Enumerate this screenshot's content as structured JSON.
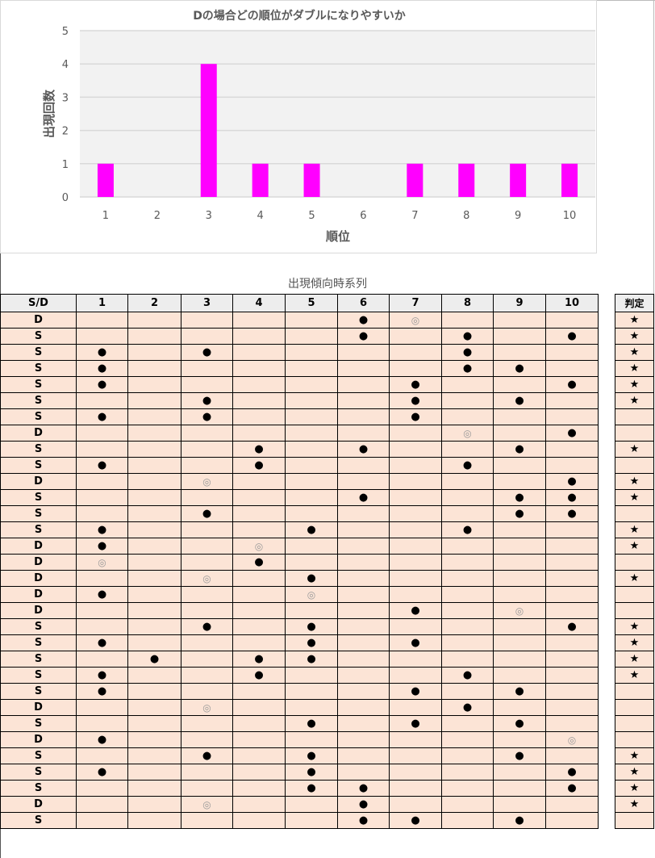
{
  "chart_data": {
    "type": "bar",
    "title": "Dの場合どの順位がダブルになりやすいか",
    "xlabel": "順位",
    "ylabel": "出現回数",
    "categories": [
      "1",
      "2",
      "3",
      "4",
      "5",
      "6",
      "7",
      "8",
      "9",
      "10"
    ],
    "values": [
      1,
      0,
      4,
      1,
      1,
      0,
      1,
      1,
      1,
      1
    ],
    "ylim": [
      0,
      5
    ],
    "yticks": [
      "0",
      "1",
      "2",
      "3",
      "4",
      "5"
    ],
    "grid": true,
    "bar_color": "#ff00ff"
  },
  "table": {
    "title": "出現傾向時系列",
    "headers": [
      "S/D",
      "1",
      "2",
      "3",
      "4",
      "5",
      "6",
      "7",
      "8",
      "9",
      "10"
    ],
    "judge_header": "判定",
    "rows": [
      {
        "sd": "D",
        "cells": [
          "",
          "",
          "",
          "",
          "",
          "●",
          "◎",
          "",
          "",
          ""
        ],
        "judge": "★"
      },
      {
        "sd": "S",
        "cells": [
          "",
          "",
          "",
          "",
          "",
          "●",
          "",
          "●",
          "",
          "●"
        ],
        "judge": "★"
      },
      {
        "sd": "S",
        "cells": [
          "●",
          "",
          "●",
          "",
          "",
          "",
          "",
          "●",
          "",
          ""
        ],
        "judge": "★"
      },
      {
        "sd": "S",
        "cells": [
          "●",
          "",
          "",
          "",
          "",
          "",
          "",
          "●",
          "●",
          ""
        ],
        "judge": "★"
      },
      {
        "sd": "S",
        "cells": [
          "●",
          "",
          "",
          "",
          "",
          "",
          "●",
          "",
          "",
          "●"
        ],
        "judge": "★"
      },
      {
        "sd": "S",
        "cells": [
          "",
          "",
          "●",
          "",
          "",
          "",
          "●",
          "",
          "●",
          ""
        ],
        "judge": "★"
      },
      {
        "sd": "S",
        "cells": [
          "●",
          "",
          "●",
          "",
          "",
          "",
          "●",
          "",
          "",
          ""
        ],
        "judge": ""
      },
      {
        "sd": "D",
        "cells": [
          "",
          "",
          "",
          "",
          "",
          "",
          "",
          "◎",
          "",
          "●"
        ],
        "judge": ""
      },
      {
        "sd": "S",
        "cells": [
          "",
          "",
          "",
          "●",
          "",
          "●",
          "",
          "",
          "●",
          ""
        ],
        "judge": "★"
      },
      {
        "sd": "S",
        "cells": [
          "●",
          "",
          "",
          "●",
          "",
          "",
          "",
          "●",
          "",
          ""
        ],
        "judge": ""
      },
      {
        "sd": "D",
        "cells": [
          "",
          "",
          "◎",
          "",
          "",
          "",
          "",
          "",
          "",
          "●"
        ],
        "judge": "★"
      },
      {
        "sd": "S",
        "cells": [
          "",
          "",
          "",
          "",
          "",
          "●",
          "",
          "",
          "●",
          "●"
        ],
        "judge": "★"
      },
      {
        "sd": "S",
        "cells": [
          "",
          "",
          "●",
          "",
          "",
          "",
          "",
          "",
          "●",
          "●"
        ],
        "judge": ""
      },
      {
        "sd": "S",
        "cells": [
          "●",
          "",
          "",
          "",
          "●",
          "",
          "",
          "●",
          "",
          ""
        ],
        "judge": "★"
      },
      {
        "sd": "D",
        "cells": [
          "●",
          "",
          "",
          "◎",
          "",
          "",
          "",
          "",
          "",
          ""
        ],
        "judge": "★"
      },
      {
        "sd": "D",
        "cells": [
          "◎",
          "",
          "",
          "●",
          "",
          "",
          "",
          "",
          "",
          ""
        ],
        "judge": ""
      },
      {
        "sd": "D",
        "cells": [
          "",
          "",
          "◎",
          "",
          "●",
          "",
          "",
          "",
          "",
          ""
        ],
        "judge": "★"
      },
      {
        "sd": "D",
        "cells": [
          "●",
          "",
          "",
          "",
          "◎",
          "",
          "",
          "",
          "",
          ""
        ],
        "judge": ""
      },
      {
        "sd": "D",
        "cells": [
          "",
          "",
          "",
          "",
          "",
          "",
          "●",
          "",
          "◎",
          ""
        ],
        "judge": ""
      },
      {
        "sd": "S",
        "cells": [
          "",
          "",
          "●",
          "",
          "●",
          "",
          "",
          "",
          "",
          "●"
        ],
        "judge": "★"
      },
      {
        "sd": "S",
        "cells": [
          "●",
          "",
          "",
          "",
          "●",
          "",
          "●",
          "",
          "",
          ""
        ],
        "judge": "★"
      },
      {
        "sd": "S",
        "cells": [
          "",
          "●",
          "",
          "●",
          "●",
          "",
          "",
          "",
          "",
          ""
        ],
        "judge": "★"
      },
      {
        "sd": "S",
        "cells": [
          "●",
          "",
          "",
          "●",
          "",
          "",
          "",
          "●",
          "",
          ""
        ],
        "judge": "★"
      },
      {
        "sd": "S",
        "cells": [
          "●",
          "",
          "",
          "",
          "",
          "",
          "●",
          "",
          "●",
          ""
        ],
        "judge": ""
      },
      {
        "sd": "D",
        "cells": [
          "",
          "",
          "◎",
          "",
          "",
          "",
          "",
          "●",
          "",
          ""
        ],
        "judge": ""
      },
      {
        "sd": "S",
        "cells": [
          "",
          "",
          "",
          "",
          "●",
          "",
          "●",
          "",
          "●",
          ""
        ],
        "judge": ""
      },
      {
        "sd": "D",
        "cells": [
          "●",
          "",
          "",
          "",
          "",
          "",
          "",
          "",
          "",
          "◎"
        ],
        "judge": ""
      },
      {
        "sd": "S",
        "cells": [
          "",
          "",
          "●",
          "",
          "●",
          "",
          "",
          "",
          "●",
          ""
        ],
        "judge": "★"
      },
      {
        "sd": "S",
        "cells": [
          "●",
          "",
          "",
          "",
          "●",
          "",
          "",
          "",
          "",
          "●"
        ],
        "judge": "★"
      },
      {
        "sd": "S",
        "cells": [
          "",
          "",
          "",
          "",
          "●",
          "●",
          "",
          "",
          "",
          "●"
        ],
        "judge": "★"
      },
      {
        "sd": "D",
        "cells": [
          "",
          "",
          "◎",
          "",
          "",
          "●",
          "",
          "",
          "",
          ""
        ],
        "judge": "★"
      },
      {
        "sd": "S",
        "cells": [
          "",
          "",
          "",
          "",
          "",
          "●",
          "●",
          "",
          "●",
          ""
        ],
        "judge": ""
      }
    ]
  }
}
